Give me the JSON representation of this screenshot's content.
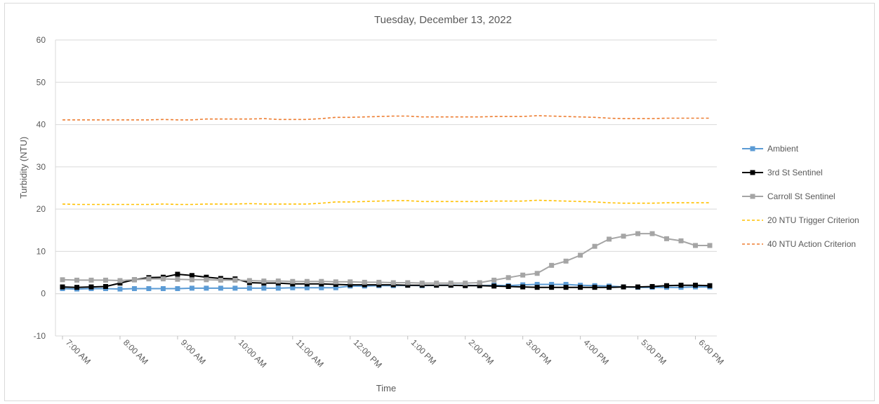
{
  "chart_data": {
    "type": "line",
    "title": "Tuesday, December 13, 2022",
    "xlabel": "Time",
    "ylabel": "Turbidity (NTU)",
    "ylim": [
      -10,
      60
    ],
    "yticks": [
      -10,
      0,
      10,
      20,
      30,
      40,
      50,
      60
    ],
    "grid": true,
    "legend_position": "right",
    "x_tick_labels": [
      "7:00 AM",
      "8:00 AM",
      "9:00 AM",
      "10:00 AM",
      "11:00 AM",
      "12:00 PM",
      "1:00 PM",
      "2:00 PM",
      "3:00 PM",
      "4:00 PM",
      "5:00 PM",
      "6:00 PM"
    ],
    "x_start": "7:00 AM",
    "x_step_minutes": 15,
    "series": [
      {
        "name": "Ambient",
        "color": "#5b9bd5",
        "style": "solid",
        "marker": "square",
        "values": [
          1.2,
          1.1,
          1.2,
          1.2,
          1.1,
          1.2,
          1.2,
          1.2,
          1.2,
          1.3,
          1.3,
          1.3,
          1.3,
          1.3,
          1.3,
          1.3,
          1.4,
          1.4,
          1.4,
          1.4,
          1.8,
          1.8,
          1.9,
          1.9,
          2.0,
          1.9,
          2.0,
          2.0,
          2.0,
          1.9,
          2.0,
          1.9,
          2.1,
          2.2,
          2.2,
          2.2,
          2.0,
          1.9,
          1.8,
          1.6,
          1.5,
          1.5,
          1.5,
          1.5,
          1.6,
          1.6
        ]
      },
      {
        "name": "3rd St Sentinel",
        "color": "#000000",
        "style": "solid",
        "marker": "square",
        "values": [
          1.6,
          1.5,
          1.6,
          1.7,
          2.5,
          3.3,
          3.8,
          3.9,
          4.6,
          4.3,
          3.9,
          3.6,
          3.5,
          2.6,
          2.5,
          2.5,
          2.3,
          2.3,
          2.3,
          2.2,
          2.1,
          2.1,
          2.1,
          2.1,
          2.0,
          2.0,
          2.0,
          2.0,
          1.9,
          1.9,
          1.8,
          1.7,
          1.6,
          1.5,
          1.5,
          1.5,
          1.5,
          1.5,
          1.5,
          1.6,
          1.6,
          1.7,
          1.9,
          2.0,
          2.0,
          1.9
        ]
      },
      {
        "name": "Carroll St Sentinel",
        "color": "#a5a5a5",
        "style": "solid",
        "marker": "square",
        "values": [
          3.3,
          3.2,
          3.2,
          3.2,
          3.1,
          3.3,
          3.5,
          3.5,
          3.4,
          3.3,
          3.3,
          3.2,
          3.2,
          3.1,
          3.0,
          3.0,
          2.9,
          2.9,
          2.9,
          2.8,
          2.8,
          2.7,
          2.7,
          2.6,
          2.6,
          2.5,
          2.5,
          2.5,
          2.5,
          2.6,
          3.2,
          3.8,
          4.4,
          4.8,
          6.7,
          7.7,
          9.1,
          11.2,
          12.9,
          13.6,
          14.2,
          14.2,
          13.0,
          12.5,
          11.4,
          11.4
        ]
      },
      {
        "name": "20 NTU Trigger Criterion",
        "color": "#ffc000",
        "style": "dashed",
        "marker": "none",
        "values": [
          21.2,
          21.1,
          21.1,
          21.1,
          21.1,
          21.1,
          21.1,
          21.2,
          21.1,
          21.1,
          21.2,
          21.2,
          21.2,
          21.3,
          21.2,
          21.2,
          21.2,
          21.2,
          21.4,
          21.7,
          21.7,
          21.8,
          21.9,
          22.0,
          22.0,
          21.8,
          21.8,
          21.8,
          21.8,
          21.8,
          21.9,
          21.9,
          21.9,
          22.1,
          22.0,
          21.9,
          21.8,
          21.7,
          21.5,
          21.4,
          21.4,
          21.4,
          21.5,
          21.5,
          21.5,
          21.5
        ]
      },
      {
        "name": "40 NTU Action Criterion",
        "color": "#ed7d31",
        "style": "dashed",
        "marker": "none",
        "values": [
          41.1,
          41.1,
          41.1,
          41.1,
          41.1,
          41.1,
          41.1,
          41.2,
          41.1,
          41.1,
          41.3,
          41.3,
          41.3,
          41.3,
          41.4,
          41.2,
          41.2,
          41.2,
          41.4,
          41.7,
          41.7,
          41.8,
          41.9,
          42.0,
          42.0,
          41.8,
          41.8,
          41.8,
          41.8,
          41.8,
          41.9,
          41.9,
          41.9,
          42.1,
          42.0,
          41.9,
          41.8,
          41.7,
          41.5,
          41.4,
          41.4,
          41.4,
          41.5,
          41.5,
          41.5,
          41.5
        ]
      }
    ]
  }
}
